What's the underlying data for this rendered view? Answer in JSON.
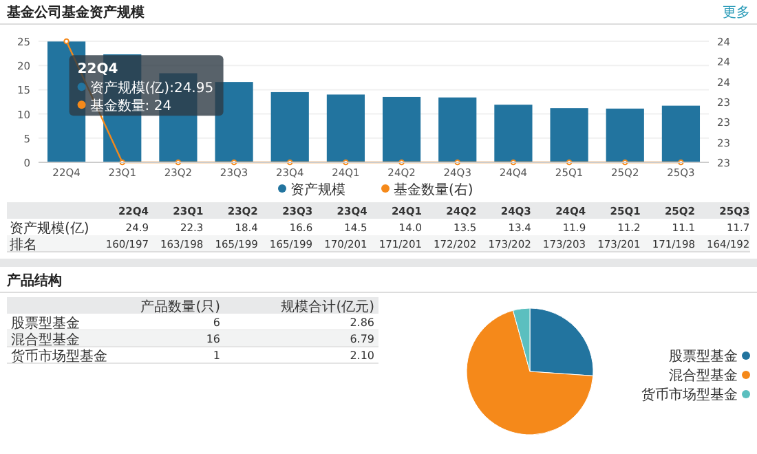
{
  "chart_data": [
    {
      "type": "bar",
      "title": "基金公司基金资产规模",
      "categories": [
        "22Q4",
        "23Q1",
        "23Q2",
        "23Q3",
        "23Q4",
        "24Q1",
        "24Q2",
        "24Q3",
        "24Q4",
        "25Q1",
        "25Q2",
        "25Q3"
      ],
      "series": [
        {
          "name": "资产规模",
          "color": "#22749f",
          "values": [
            24.95,
            22.3,
            18.4,
            16.6,
            14.5,
            14.0,
            13.5,
            13.4,
            11.9,
            11.2,
            11.1,
            11.7
          ],
          "value_labels": [
            "24.9",
            "22.3",
            "18.4",
            "16.6",
            "14.5",
            "14.0",
            "13.5",
            "13.4",
            "11.9",
            "11.2",
            "11.1",
            "11.7"
          ]
        },
        {
          "name": "基金数量(右)",
          "type": "line",
          "axis": "y2",
          "color": "#f5891a",
          "values": [
            24,
            23,
            23,
            23,
            23,
            23,
            23,
            23,
            23,
            23,
            23,
            23
          ]
        }
      ],
      "ylim": [
        0,
        25
      ],
      "yticks": [
        0,
        5,
        10,
        15,
        20,
        25
      ],
      "y2lim": [
        23,
        24
      ],
      "y2ticks": [
        {
          "value": 23,
          "label": "23"
        },
        {
          "value": 23.1667,
          "label": "23"
        },
        {
          "value": 23.3333,
          "label": "23"
        },
        {
          "value": 23.5,
          "label": "23"
        },
        {
          "value": 23.6667,
          "label": "24"
        },
        {
          "value": 23.8333,
          "label": "24"
        },
        {
          "value": 24,
          "label": "24"
        }
      ],
      "grid": "y",
      "legend": "bottom",
      "marker": "circle",
      "annotations": [
        "更多",
        {
          "text": "22Q4",
          "x": "22Q4",
          "y": 24.95
        },
        "资产规模(亿):24.95",
        "基金数量: 24"
      ]
    },
    {
      "type": "other",
      "categories": [
        "22Q4",
        "23Q1",
        "23Q2",
        "23Q3",
        "23Q4",
        "24Q1",
        "24Q2",
        "24Q3",
        "24Q4",
        "25Q1",
        "25Q2",
        "25Q3"
      ],
      "series": [
        {
          "name": "资产规模(亿)",
          "values": [
            null,
            null,
            null,
            null,
            null,
            null,
            null,
            null,
            null,
            null,
            null,
            null
          ]
        },
        {
          "name": "排名",
          "values": [
            null,
            null,
            null,
            null,
            null,
            null,
            null,
            null,
            null,
            null,
            null,
            null
          ],
          "value_labels": [
            "160/197",
            "163/198",
            "165/199",
            "165/199",
            "170/201",
            "171/201",
            "172/202",
            "173/202",
            "173/203",
            "173/201",
            "171/198",
            "164/192"
          ]
        }
      ]
    },
    {
      "type": "other",
      "title": "产品结构",
      "categories": [
        "股票型基金",
        "混合型基金",
        "货币市场型基金"
      ],
      "series": [
        {
          "name": "产品数量(只)",
          "values": [
            6,
            16,
            1
          ],
          "value_labels": [
            "6",
            "16",
            "1"
          ]
        },
        {
          "name": "规模合计(亿元)",
          "values": [
            2.86,
            6.79,
            2.1
          ],
          "value_labels": [
            "2.86",
            "6.79",
            "2.10"
          ]
        }
      ]
    },
    {
      "type": "pie",
      "categories": [
        "股票型基金",
        "混合型基金",
        "货币市场型基金"
      ],
      "values": [
        26.1,
        69.6,
        4.3
      ],
      "colors": [
        "#22749f",
        "#f5891a",
        "#5bbfbf"
      ],
      "legend": "right"
    }
  ]
}
